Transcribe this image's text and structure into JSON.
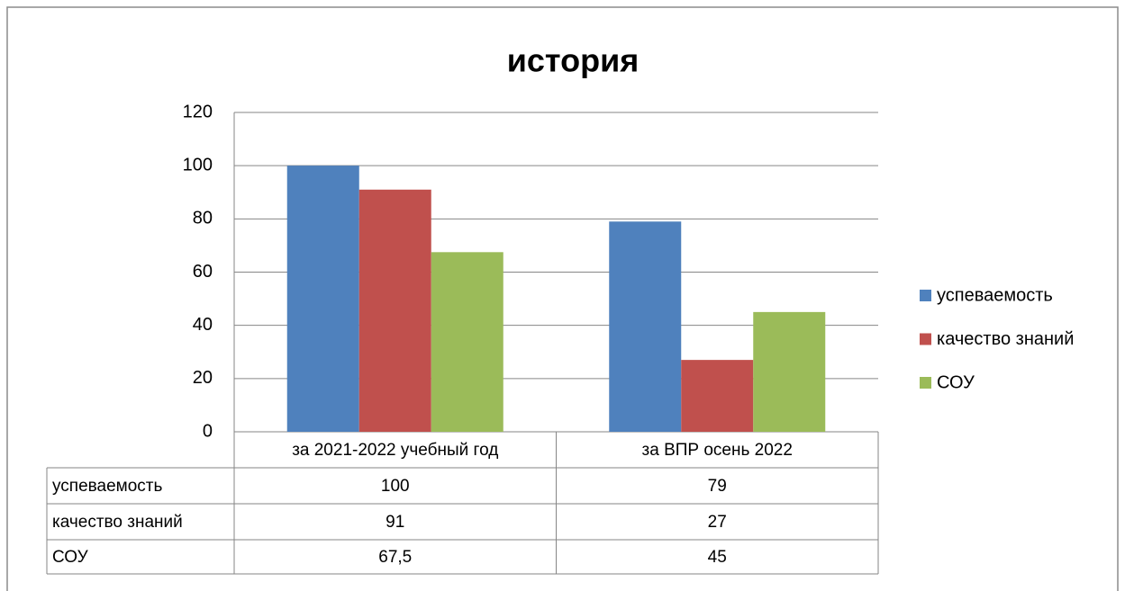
{
  "chart_data": {
    "type": "bar",
    "title": "история",
    "categories": [
      "за 2021-2022 учебный год",
      "за ВПР осень 2022"
    ],
    "series": [
      {
        "name": "успеваемость",
        "color": "#4f81bd",
        "values": [
          100,
          79
        ]
      },
      {
        "name": "качество знаний",
        "color": "#c0504d",
        "values": [
          91,
          27
        ]
      },
      {
        "name": "СОУ",
        "color": "#9bbb59",
        "values": [
          67.5,
          45
        ],
        "value_labels": [
          "67,5",
          "45"
        ]
      }
    ],
    "ylim": [
      0,
      120
    ],
    "yticks": [
      0,
      20,
      40,
      60,
      80,
      100,
      120
    ],
    "grid": true,
    "legend": "right",
    "data_table": true
  }
}
